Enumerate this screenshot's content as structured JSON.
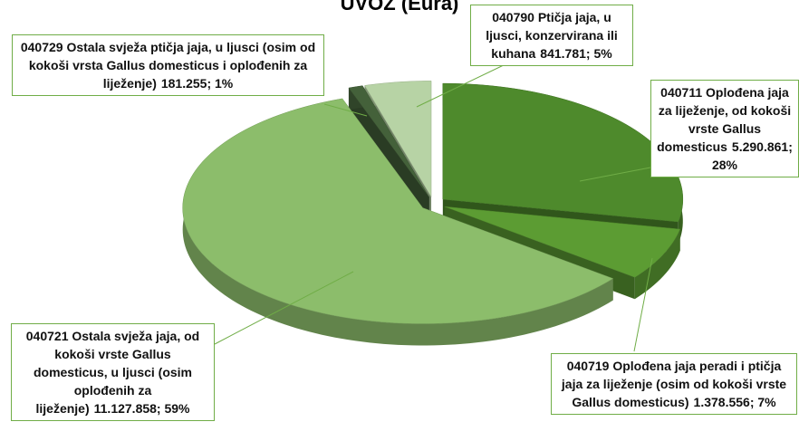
{
  "chart_data": {
    "type": "pie3d",
    "title": "UVOZ (Eura)",
    "categories": [
      "040711 Oplođena jaja za liježenje, od kokoši vrste Gallus domesticus",
      "040719 Oplođena jaja peradi i ptičja jaja za liježenje (osim od kokoši vrste Gallus domesticus)",
      "040721 Ostala svježa jaja, od kokoši vrste Gallus domesticus, u ljusci (osim oplođenih za liježenje)",
      "040729 Ostala svježa ptičja jaja, u ljusci (osim od kokoši vrsta Gallus domesticus i oplođenih za liježenje)",
      "040790 Ptičja jaja, u ljusci, konzervirana ili kuhana"
    ],
    "values": [
      5290861,
      1378556,
      11127858,
      181255,
      841781
    ],
    "value_labels": [
      "5.290.861; 28%",
      "1.378.556; 7%",
      "11.127.858; 59%",
      "181.255; 1%",
      "841.781; 5%"
    ],
    "colors": [
      "#4e8a2c",
      "#5c9c33",
      "#8cbd6b",
      "#44613a",
      "#b7d3a5"
    ]
  }
}
